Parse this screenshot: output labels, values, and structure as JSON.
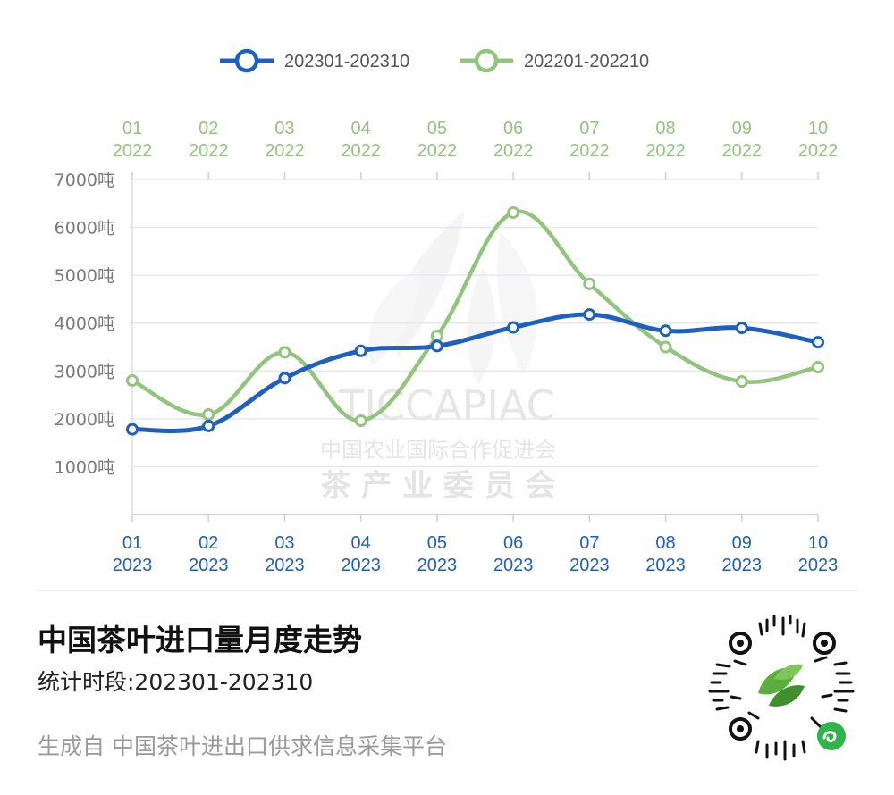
{
  "chart_data": {
    "type": "line",
    "legend": [
      "202301-202310",
      "202201-202210"
    ],
    "legend_position": "top",
    "y_unit": "吨",
    "y_ticks": [
      "7000吨",
      "6000吨",
      "5000吨",
      "4000吨",
      "3000吨",
      "2000吨",
      "1000吨"
    ],
    "ylim": [
      0,
      7000
    ],
    "grid": true,
    "x_top_months": [
      "01",
      "02",
      "03",
      "04",
      "05",
      "06",
      "07",
      "08",
      "09",
      "10"
    ],
    "x_top_year": "2022",
    "x_bottom_months": [
      "01",
      "02",
      "03",
      "04",
      "05",
      "06",
      "07",
      "08",
      "09",
      "10"
    ],
    "x_bottom_year": "2023",
    "series": [
      {
        "name": "202301-202310",
        "color": "#1f5fbf",
        "values": [
          1780,
          1850,
          2850,
          3420,
          3520,
          3910,
          4180,
          3840,
          3900,
          3600
        ]
      },
      {
        "name": "202201-202210",
        "color": "#93c47d",
        "values": [
          2800,
          2090,
          3390,
          1960,
          3730,
          6310,
          4820,
          3500,
          2780,
          3080
        ]
      }
    ]
  },
  "watermark": {
    "brand": "TICCAPIAC",
    "org_line1": "中国农业国际合作促进会",
    "org_line2": "茶 产 业 委 员 会"
  },
  "footer": {
    "title": "中国茶叶进口量月度走势",
    "period": "统计时段:202301-202310",
    "source": "生成自 中国茶叶进出口供求信息采集平台"
  },
  "colors": {
    "accent_blue": "#1f5fbf",
    "accent_green": "#93c47d",
    "grid": "#e6e8ef"
  },
  "icons": {
    "qr": "qr-code-icon",
    "leaf": "tea-leaf-logo-icon",
    "mini_program": "mini-program-icon"
  }
}
